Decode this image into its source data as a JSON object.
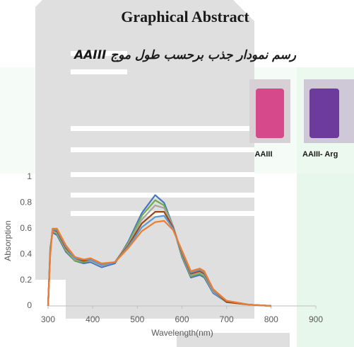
{
  "header": {
    "title": "Graphical Abstract",
    "subtitle": "رسم نمودار جذب برحسب طول موج AAIII"
  },
  "vials": [
    {
      "label": "AAIII"
    },
    {
      "label": "AAIII- Arg"
    }
  ],
  "chart_data": {
    "type": "line",
    "x_label": "Wavelength(nm)",
    "y_label": "Absorption",
    "x": [
      300,
      305,
      310,
      320,
      340,
      360,
      380,
      395,
      420,
      450,
      480,
      510,
      540,
      560,
      580,
      600,
      620,
      640,
      650,
      670,
      700,
      750,
      800
    ],
    "series": [
      {
        "color": "#4472c4",
        "values": [
          0,
          0.45,
          0.57,
          0.55,
          0.42,
          0.35,
          0.33,
          0.34,
          0.3,
          0.33,
          0.5,
          0.72,
          0.86,
          0.8,
          0.62,
          0.38,
          0.22,
          0.24,
          0.22,
          0.1,
          0.03,
          0.01,
          0
        ]
      },
      {
        "color": "#70ad47",
        "values": [
          0,
          0.44,
          0.58,
          0.56,
          0.43,
          0.35,
          0.34,
          0.35,
          0.31,
          0.34,
          0.49,
          0.7,
          0.82,
          0.78,
          0.62,
          0.39,
          0.23,
          0.25,
          0.23,
          0.11,
          0.03,
          0.01,
          0
        ]
      },
      {
        "color": "#a5a5a5",
        "values": [
          0,
          0.43,
          0.58,
          0.57,
          0.44,
          0.36,
          0.35,
          0.35,
          0.31,
          0.34,
          0.48,
          0.67,
          0.78,
          0.76,
          0.62,
          0.4,
          0.24,
          0.26,
          0.24,
          0.11,
          0.03,
          0.01,
          0
        ]
      },
      {
        "color": "#9e480e",
        "values": [
          0,
          0.42,
          0.59,
          0.58,
          0.45,
          0.37,
          0.35,
          0.36,
          0.32,
          0.34,
          0.47,
          0.64,
          0.73,
          0.73,
          0.61,
          0.41,
          0.25,
          0.27,
          0.25,
          0.12,
          0.03,
          0.01,
          0
        ]
      },
      {
        "color": "#5b9bd5",
        "values": [
          0,
          0.41,
          0.59,
          0.59,
          0.46,
          0.37,
          0.36,
          0.36,
          0.32,
          0.34,
          0.46,
          0.61,
          0.69,
          0.7,
          0.6,
          0.42,
          0.26,
          0.28,
          0.26,
          0.12,
          0.04,
          0.01,
          0
        ]
      },
      {
        "color": "#ed7d31",
        "values": [
          0,
          0.4,
          0.6,
          0.6,
          0.47,
          0.38,
          0.36,
          0.37,
          0.33,
          0.34,
          0.45,
          0.58,
          0.65,
          0.66,
          0.59,
          0.43,
          0.27,
          0.29,
          0.27,
          0.13,
          0.04,
          0.01,
          0
        ]
      }
    ],
    "xlim": [
      300,
      900
    ],
    "xticks": [
      300,
      400,
      500,
      600,
      700,
      800,
      900
    ],
    "ylim": [
      0,
      1
    ],
    "yticks": [
      0,
      0.2,
      0.4,
      0.6,
      0.8,
      1
    ],
    "grid": false
  }
}
